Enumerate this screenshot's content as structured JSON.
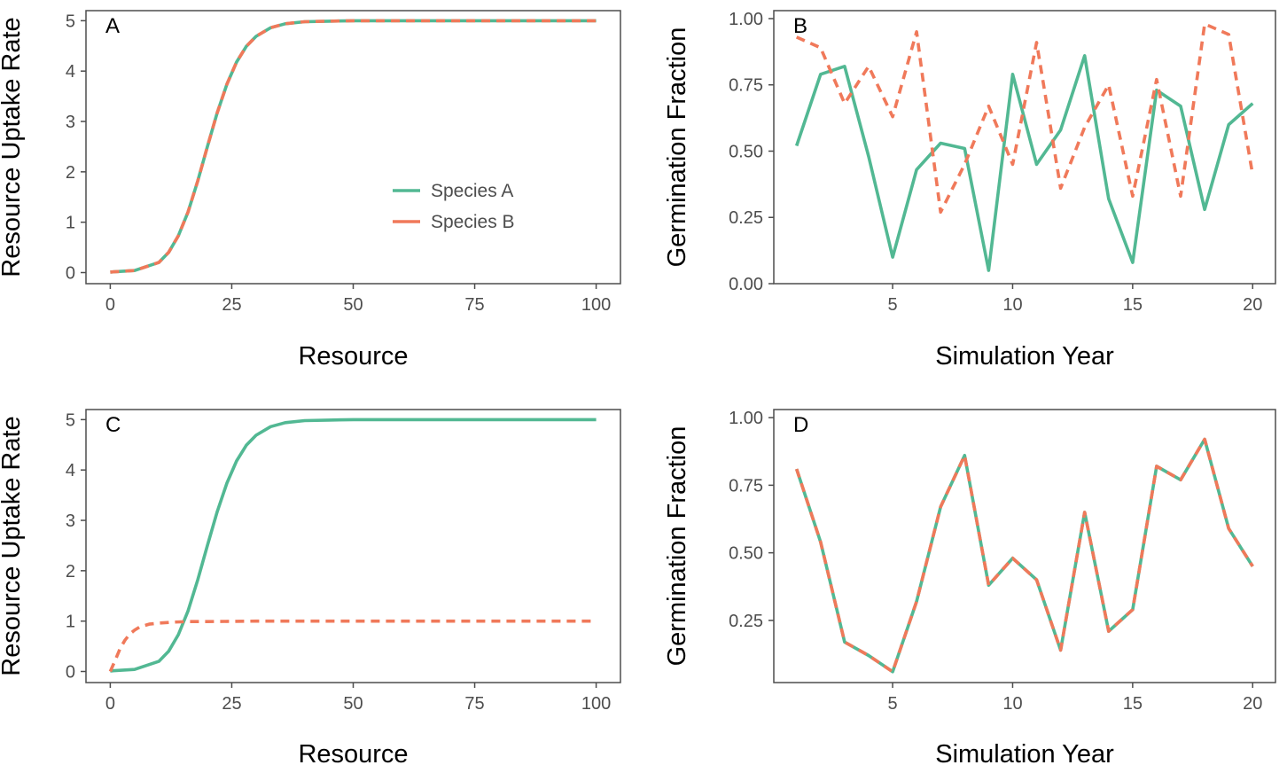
{
  "colors": {
    "species_a": "#52b893",
    "species_b": "#f0795a",
    "axis": "#4d4d4d"
  },
  "chart_data": [
    {
      "type": "line",
      "panel_label": "A",
      "xlabel": "Resource",
      "ylabel": "Resource Uptake Rate",
      "xlim": [
        -5,
        105
      ],
      "ylim": [
        -0.22,
        5.2
      ],
      "xticks": [
        0,
        25,
        50,
        75,
        100
      ],
      "yticks": [
        0,
        1,
        2,
        3,
        4,
        5
      ],
      "legend": {
        "placement": "center-right",
        "entries": [
          "Species A",
          "Species B"
        ]
      },
      "series": [
        {
          "name": "Species A",
          "style": "solid",
          "color": "#52b893",
          "x": [
            0,
            5,
            10,
            12,
            14,
            16,
            18,
            20,
            22,
            24,
            26,
            28,
            30,
            33,
            36,
            40,
            45,
            50,
            60,
            70,
            80,
            90,
            100
          ],
          "y": [
            0.01,
            0.04,
            0.2,
            0.4,
            0.73,
            1.2,
            1.82,
            2.5,
            3.17,
            3.74,
            4.18,
            4.49,
            4.69,
            4.86,
            4.94,
            4.98,
            4.99,
            5.0,
            5.0,
            5.0,
            5.0,
            5.0,
            5.0
          ]
        },
        {
          "name": "Species B",
          "style": "dashed",
          "color": "#f0795a",
          "x": [
            0,
            5,
            10,
            12,
            14,
            16,
            18,
            20,
            22,
            24,
            26,
            28,
            30,
            33,
            36,
            40,
            45,
            50,
            60,
            70,
            80,
            90,
            100
          ],
          "y": [
            0.01,
            0.04,
            0.2,
            0.4,
            0.73,
            1.2,
            1.82,
            2.5,
            3.17,
            3.74,
            4.18,
            4.49,
            4.69,
            4.86,
            4.94,
            4.98,
            4.99,
            5.0,
            5.0,
            5.0,
            5.0,
            5.0,
            5.0
          ]
        }
      ]
    },
    {
      "type": "line",
      "panel_label": "B",
      "xlabel": "Simulation Year",
      "ylabel": "Germination Fraction",
      "xlim": [
        0.05,
        20.95
      ],
      "ylim": [
        0,
        1.03
      ],
      "xticks": [
        5,
        10,
        15,
        20
      ],
      "yticks": [
        0.0,
        0.25,
        0.5,
        0.75,
        1.0
      ],
      "ytick_labels": [
        "0.00",
        "0.25",
        "0.50",
        "0.75",
        "1.00"
      ],
      "series": [
        {
          "name": "Species A",
          "style": "solid",
          "color": "#52b893",
          "x": [
            1,
            2,
            3,
            4,
            5,
            6,
            7,
            8,
            9,
            10,
            11,
            12,
            13,
            14,
            15,
            16,
            17,
            18,
            19,
            20
          ],
          "y": [
            0.52,
            0.79,
            0.82,
            0.48,
            0.1,
            0.43,
            0.53,
            0.51,
            0.05,
            0.79,
            0.45,
            0.58,
            0.86,
            0.32,
            0.08,
            0.73,
            0.67,
            0.28,
            0.6,
            0.68
          ]
        },
        {
          "name": "Species B",
          "style": "dashed",
          "color": "#f0795a",
          "x": [
            1,
            2,
            3,
            4,
            5,
            6,
            7,
            8,
            9,
            10,
            11,
            12,
            13,
            14,
            15,
            16,
            17,
            18,
            19,
            20
          ],
          "y": [
            0.93,
            0.89,
            0.68,
            0.82,
            0.63,
            0.95,
            0.27,
            0.45,
            0.67,
            0.45,
            0.91,
            0.36,
            0.59,
            0.75,
            0.33,
            0.77,
            0.33,
            0.98,
            0.94,
            0.41
          ]
        }
      ]
    },
    {
      "type": "line",
      "panel_label": "C",
      "xlabel": "Resource",
      "ylabel": "Resource Uptake Rate",
      "xlim": [
        -5,
        105
      ],
      "ylim": [
        -0.22,
        5.2
      ],
      "xticks": [
        0,
        25,
        50,
        75,
        100
      ],
      "yticks": [
        0,
        1,
        2,
        3,
        4,
        5
      ],
      "series": [
        {
          "name": "Species A",
          "style": "solid",
          "color": "#52b893",
          "x": [
            0,
            5,
            10,
            12,
            14,
            16,
            18,
            20,
            22,
            24,
            26,
            28,
            30,
            33,
            36,
            40,
            45,
            50,
            60,
            70,
            80,
            90,
            100
          ],
          "y": [
            0.01,
            0.04,
            0.2,
            0.4,
            0.73,
            1.2,
            1.82,
            2.5,
            3.17,
            3.74,
            4.18,
            4.49,
            4.69,
            4.86,
            4.94,
            4.98,
            4.99,
            5.0,
            5.0,
            5.0,
            5.0,
            5.0,
            5.0
          ]
        },
        {
          "name": "Species B",
          "style": "dashed",
          "color": "#f0795a",
          "x": [
            0,
            1,
            2,
            3,
            4,
            5,
            6,
            8,
            10,
            13,
            16,
            20,
            30,
            40,
            60,
            80,
            100
          ],
          "y": [
            0.0,
            0.22,
            0.45,
            0.62,
            0.74,
            0.82,
            0.88,
            0.94,
            0.96,
            0.98,
            0.99,
            0.99,
            1.0,
            1.0,
            1.0,
            1.0,
            1.0
          ]
        }
      ]
    },
    {
      "type": "line",
      "panel_label": "D",
      "xlabel": "Simulation Year",
      "ylabel": "Germination Fraction",
      "xlim": [
        0.05,
        20.95
      ],
      "ylim": [
        0.02,
        1.03
      ],
      "xticks": [
        5,
        10,
        15,
        20
      ],
      "yticks": [
        0.25,
        0.5,
        0.75,
        1.0
      ],
      "ytick_labels": [
        "0.25",
        "0.50",
        "0.75",
        "1.00"
      ],
      "series": [
        {
          "name": "Species A",
          "style": "solid",
          "color": "#52b893",
          "x": [
            1,
            2,
            3,
            4,
            5,
            6,
            7,
            8,
            9,
            10,
            11,
            12,
            13,
            14,
            15,
            16,
            17,
            18,
            19,
            20
          ],
          "y": [
            0.81,
            0.54,
            0.17,
            0.12,
            0.06,
            0.32,
            0.67,
            0.86,
            0.38,
            0.48,
            0.4,
            0.14,
            0.65,
            0.21,
            0.29,
            0.82,
            0.77,
            0.92,
            0.59,
            0.45
          ]
        },
        {
          "name": "Species B",
          "style": "dashed",
          "color": "#f0795a",
          "x": [
            1,
            2,
            3,
            4,
            5,
            6,
            7,
            8,
            9,
            10,
            11,
            12,
            13,
            14,
            15,
            16,
            17,
            18,
            19,
            20
          ],
          "y": [
            0.81,
            0.54,
            0.17,
            0.12,
            0.06,
            0.32,
            0.67,
            0.86,
            0.38,
            0.48,
            0.4,
            0.14,
            0.65,
            0.21,
            0.29,
            0.82,
            0.77,
            0.92,
            0.59,
            0.45
          ]
        }
      ]
    }
  ]
}
